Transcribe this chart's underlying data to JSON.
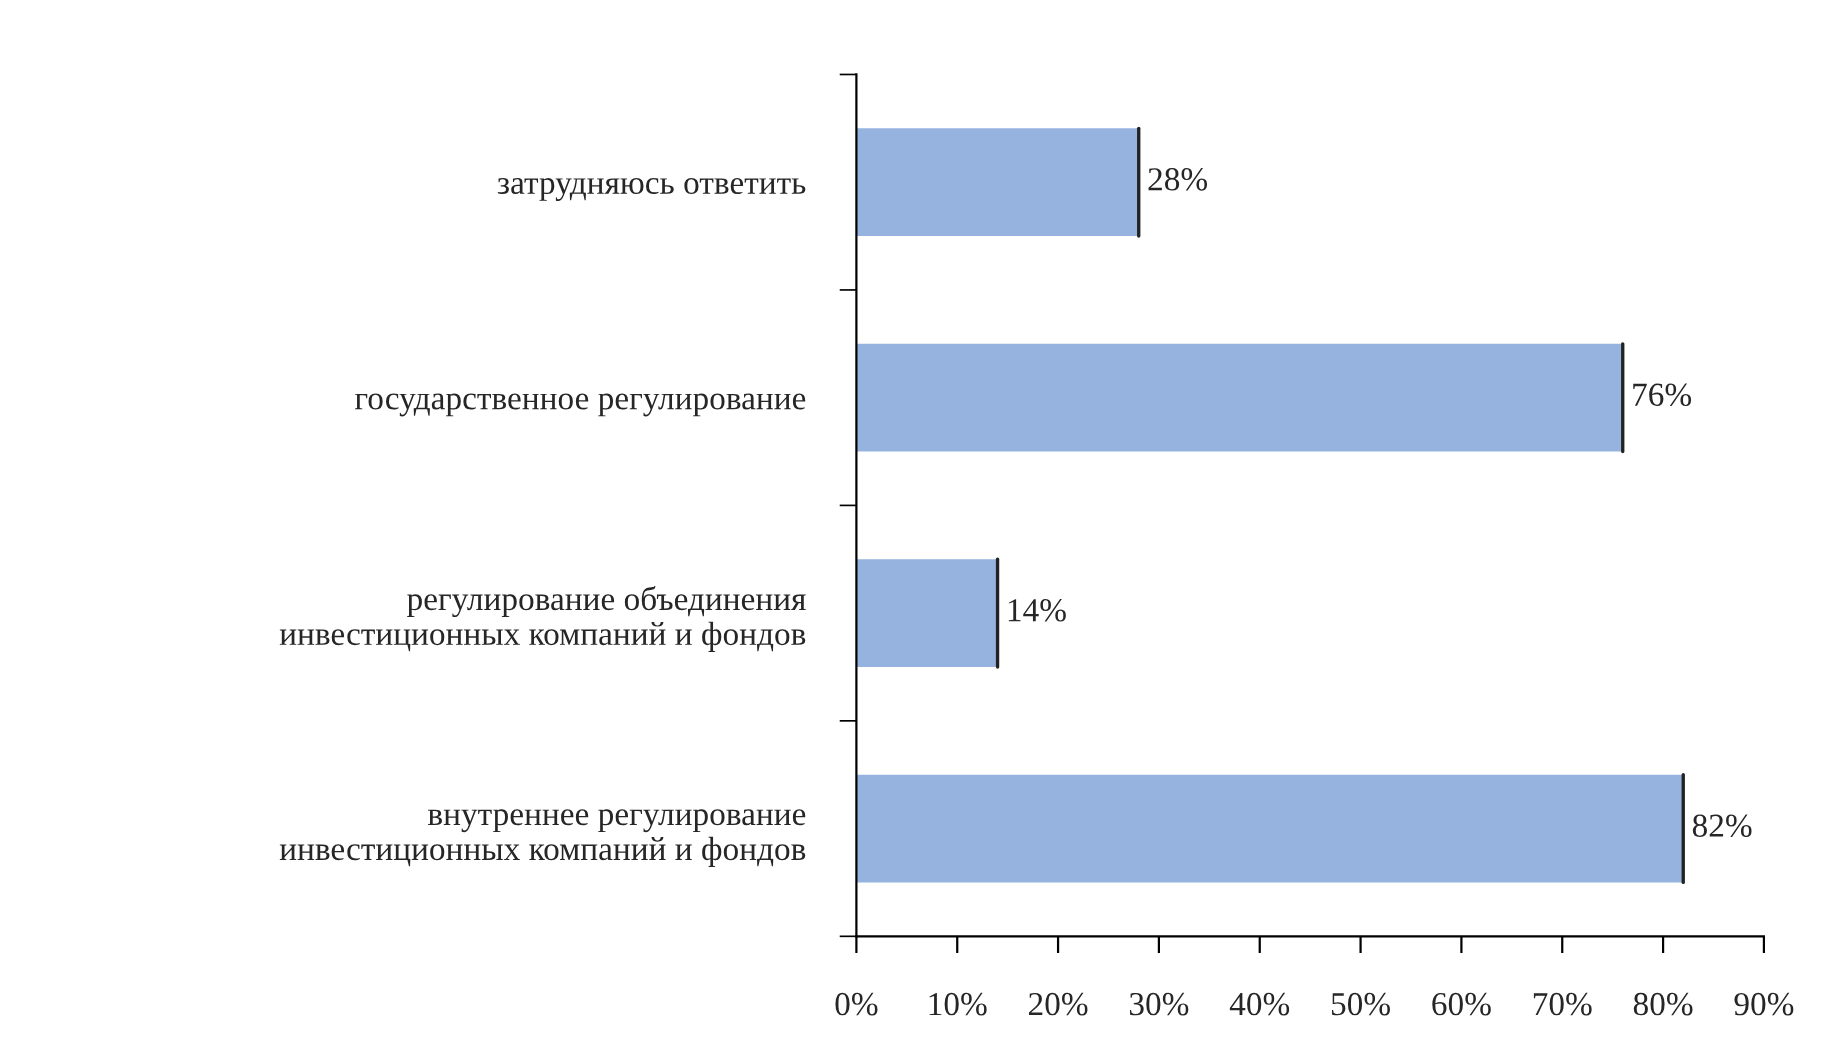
{
  "chart_data": {
    "type": "bar",
    "orientation": "horizontal",
    "categories": [
      "затрудняюсь ответить",
      "государственное регулирование",
      "регулирование объединения\nинвестиционных компаний и фондов",
      "внутреннее регулирование\nинвестиционных компаний и фондов"
    ],
    "values": [
      28,
      76,
      14,
      82
    ],
    "value_labels": [
      "28%",
      "76%",
      "14%",
      "82%"
    ],
    "color": "#95b3de",
    "xlim": [
      0,
      90
    ],
    "xticks": [
      {
        "value": 0,
        "label": "0%"
      },
      {
        "value": 10,
        "label": "10%"
      },
      {
        "value": 20,
        "label": "20%"
      },
      {
        "value": 30,
        "label": "30%"
      },
      {
        "value": 40,
        "label": "40%"
      },
      {
        "value": 50,
        "label": "50%"
      },
      {
        "value": 60,
        "label": "60%"
      },
      {
        "value": 70,
        "label": "70%"
      },
      {
        "value": 80,
        "label": "80%"
      },
      {
        "value": 90,
        "label": "90%"
      }
    ],
    "grid": false,
    "legend": false
  }
}
